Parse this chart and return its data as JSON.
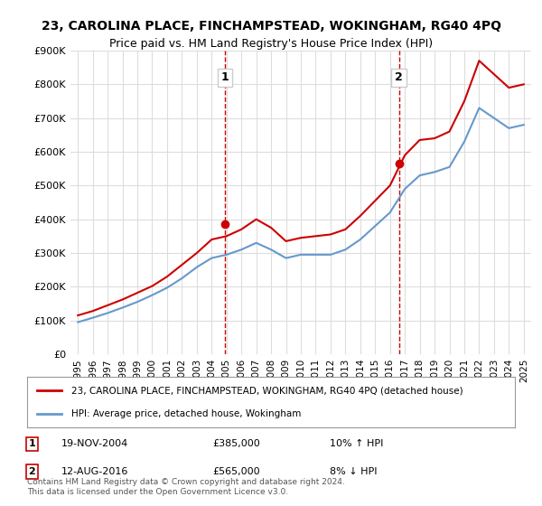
{
  "title": "23, CAROLINA PLACE, FINCHAMPSTEAD, WOKINGHAM, RG40 4PQ",
  "subtitle": "Price paid vs. HM Land Registry's House Price Index (HPI)",
  "legend_label_red": "23, CAROLINA PLACE, FINCHAMPSTEAD, WOKINGHAM, RG40 4PQ (detached house)",
  "legend_label_blue": "HPI: Average price, detached house, Wokingham",
  "footer": "Contains HM Land Registry data © Crown copyright and database right 2024.\nThis data is licensed under the Open Government Licence v3.0.",
  "sale1_label": "1",
  "sale1_date": "19-NOV-2004",
  "sale1_price": "£385,000",
  "sale1_hpi": "10% ↑ HPI",
  "sale2_label": "2",
  "sale2_date": "12-AUG-2016",
  "sale2_price": "£565,000",
  "sale2_hpi": "8% ↓ HPI",
  "ylim": [
    0,
    900000
  ],
  "yticks": [
    0,
    100000,
    200000,
    300000,
    400000,
    500000,
    600000,
    700000,
    800000,
    900000
  ],
  "ytick_labels": [
    "£0",
    "£100K",
    "£200K",
    "£300K",
    "£400K",
    "£500K",
    "£600K",
    "£700K",
    "£800K",
    "£900K"
  ],
  "red_color": "#cc0000",
  "blue_color": "#6699cc",
  "dashed_color": "#cc0000",
  "bg_color": "#ffffff",
  "grid_color": "#dddddd",
  "sale1_x": 2004.9,
  "sale2_x": 2016.6,
  "hpi_years": [
    1995,
    1996,
    1997,
    1998,
    1999,
    2000,
    2001,
    2002,
    2003,
    2004,
    2005,
    2006,
    2007,
    2008,
    2009,
    2010,
    2011,
    2012,
    2013,
    2014,
    2015,
    2016,
    2017,
    2018,
    2019,
    2020,
    2021,
    2022,
    2023,
    2024,
    2025
  ],
  "hpi_values": [
    95000,
    108000,
    122000,
    138000,
    155000,
    175000,
    197000,
    225000,
    258000,
    285000,
    295000,
    310000,
    330000,
    310000,
    285000,
    295000,
    295000,
    295000,
    310000,
    340000,
    380000,
    420000,
    490000,
    530000,
    540000,
    555000,
    630000,
    730000,
    700000,
    670000,
    680000
  ],
  "red_years": [
    1995,
    1996,
    1997,
    1998,
    1999,
    2000,
    2001,
    2002,
    2003,
    2004,
    2005,
    2006,
    2007,
    2008,
    2009,
    2010,
    2011,
    2012,
    2013,
    2014,
    2015,
    2016,
    2017,
    2018,
    2019,
    2020,
    2021,
    2022,
    2023,
    2024,
    2025
  ],
  "red_values": [
    115000,
    128000,
    145000,
    162000,
    182000,
    202000,
    230000,
    265000,
    300000,
    340000,
    350000,
    370000,
    400000,
    375000,
    335000,
    345000,
    350000,
    355000,
    370000,
    410000,
    455000,
    500000,
    590000,
    635000,
    640000,
    660000,
    750000,
    870000,
    830000,
    790000,
    800000
  ]
}
